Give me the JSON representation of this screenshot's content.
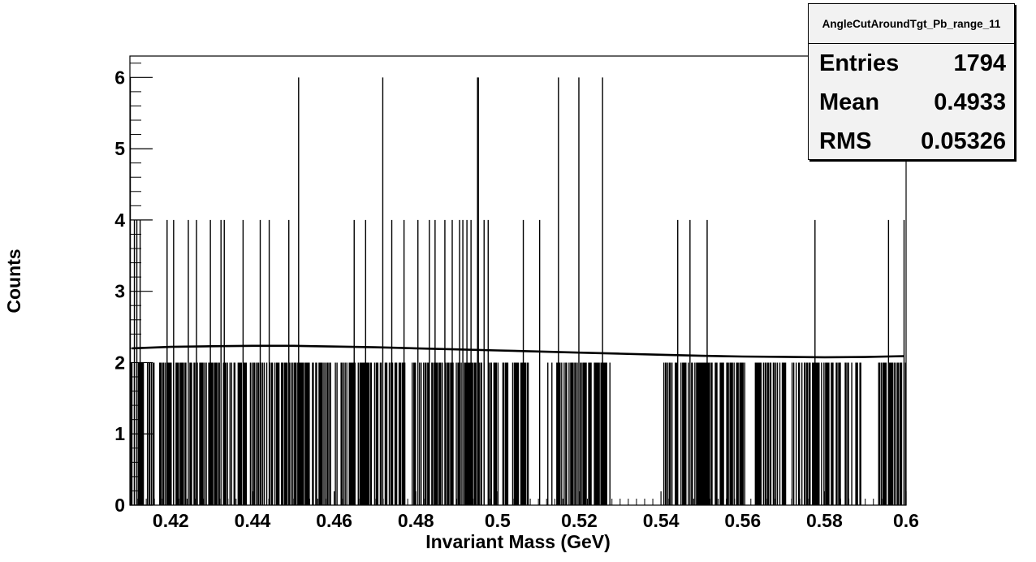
{
  "stats_box": {
    "title": "AngleCutAroundTgt_Pb_range_11",
    "rows": [
      {
        "label": "Entries",
        "value": "1794"
      },
      {
        "label": "Mean",
        "value": "0.4933"
      },
      {
        "label": "RMS",
        "value": "0.05326"
      }
    ]
  },
  "chart_data": {
    "type": "bar",
    "title": "",
    "xlabel": "Invariant Mass (GeV)",
    "ylabel": "Counts",
    "xlim": [
      0.41,
      0.6
    ],
    "ylim": [
      0,
      6.3
    ],
    "x_ticks": [
      "0.42",
      "0.44",
      "0.46",
      "0.48",
      "0.5",
      "0.52",
      "0.54",
      "0.56",
      "0.58",
      "0.6"
    ],
    "y_ticks": [
      "0",
      "1",
      "2",
      "3",
      "4",
      "5",
      "6"
    ],
    "grid": false,
    "legend": "none",
    "bins": {
      "bin_width": 0.0002,
      "count_6_at": [
        0.4101,
        0.4513,
        0.4719,
        0.4951,
        0.4953,
        0.5149,
        0.5199,
        0.5257
      ],
      "count_4_at": [
        0.4111,
        0.4117,
        0.4125,
        0.4191,
        0.4207,
        0.4243,
        0.4263,
        0.4297,
        0.4323,
        0.4331,
        0.4377,
        0.4419,
        0.4441,
        0.4489,
        0.4649,
        0.4677,
        0.4741,
        0.4771,
        0.4805,
        0.4833,
        0.4847,
        0.4871,
        0.4889,
        0.4907,
        0.4915,
        0.4925,
        0.4935,
        0.4967,
        0.4977,
        0.5063,
        0.5103,
        0.5441,
        0.5471,
        0.5513,
        0.5777,
        0.5957,
        0.5995
      ],
      "count_2_coverage": "dense 2-count bins across 0.41-0.60 with gaps",
      "count_2_gaps": [
        [
          0.5075,
          0.512
        ],
        [
          0.5275,
          0.5405
        ],
        [
          0.5605,
          0.563
        ],
        [
          0.589,
          0.593
        ]
      ]
    },
    "series": [
      {
        "type": "histogram",
        "values": "single-entry-per-bin, heights 0/2/4/6"
      },
      {
        "type": "fit_curve",
        "x": [
          0.4105,
          0.42,
          0.43,
          0.44,
          0.45,
          0.46,
          0.47,
          0.48,
          0.49,
          0.5,
          0.51,
          0.52,
          0.53,
          0.54,
          0.55,
          0.56,
          0.57,
          0.58,
          0.59,
          0.5995
        ],
        "values": [
          2.2,
          2.22,
          2.23,
          2.235,
          2.235,
          2.225,
          2.215,
          2.2,
          2.185,
          2.17,
          2.155,
          2.14,
          2.125,
          2.11,
          2.095,
          2.085,
          2.08,
          2.075,
          2.078,
          2.09
        ]
      }
    ]
  }
}
